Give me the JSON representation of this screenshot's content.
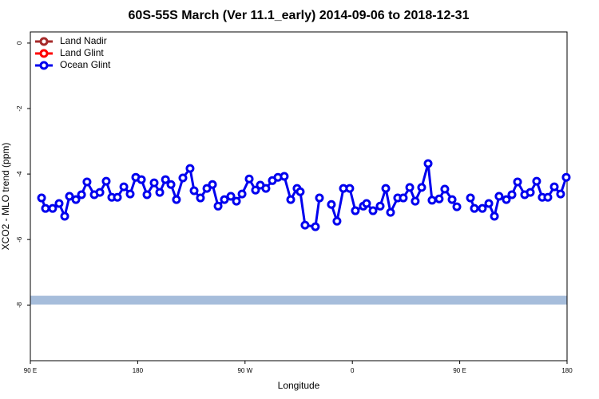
{
  "chart_data": {
    "type": "line",
    "title": "60S-55S March (Ver 11.1_early)   2014-09-06 to 2018-12-31",
    "x_label": "Longitude",
    "y_label": "XCO2 - MLO trend (ppm)",
    "xlim": [
      90,
      540
    ],
    "ylim": [
      -9.7,
      0.34
    ],
    "xticks": [
      {
        "value": 90,
        "label": "90 E"
      },
      {
        "value": 180,
        "label": "180"
      },
      {
        "value": 270,
        "label": "90 W"
      },
      {
        "value": 360,
        "label": "0"
      },
      {
        "value": 450,
        "label": "90 E"
      },
      {
        "value": 540,
        "label": "180"
      }
    ],
    "yticks": [
      0,
      -2,
      -4,
      -6,
      -8
    ],
    "hline": {
      "value": -7.85,
      "color": "#a6bddb"
    },
    "legend": "top-left",
    "series": [
      {
        "name": "Land Nadir",
        "color": "#a52a2a",
        "x": [],
        "values": []
      },
      {
        "name": "Land Glint",
        "color": "#ff0000",
        "x": [],
        "values": []
      },
      {
        "name": "Ocean Glint",
        "color": "#0000ee",
        "x": [
          99.4,
          102.7,
          108.7,
          114.1,
          118.8,
          122.8,
          128.2,
          132.9,
          137.5,
          143.6,
          148.3,
          153.6,
          158.3,
          163.0,
          168.4,
          173.7,
          178.4,
          183.1,
          187.8,
          193.8,
          198.5,
          203.3,
          207.9,
          212.5,
          217.9,
          223.9,
          227.3,
          232.6,
          238.0,
          242.7,
          247.4,
          252.7,
          258.1,
          262.8,
          267.5,
          273.5,
          278.8,
          282.8,
          287.5,
          292.9,
          297.6,
          302.9,
          308.3,
          313.6,
          316.3,
          320.3,
          329.0,
          332.4,
          337.4,
          342.4,
          347.1,
          352.5,
          357.8,
          362.5,
          369.2,
          371.9,
          377.3,
          383.3,
          388.0,
          392.0,
          398.0,
          402.7,
          408.1,
          412.7,
          418.1,
          423.5,
          426.8,
          432.8,
          437.5,
          443.6,
          447.6,
          453.3,
          459.0,
          462.3,
          469.0,
          474.4,
          479.1,
          483.0,
          489.1,
          493.8,
          498.5,
          504.5,
          509.2,
          514.5,
          519.2,
          523.9,
          529.3,
          534.6,
          539.3
        ],
        "values": [
          -4.73,
          -5.05,
          -5.05,
          -4.9,
          -5.29,
          -4.68,
          -4.78,
          -4.63,
          -4.24,
          -4.63,
          -4.56,
          -4.22,
          -4.71,
          -4.71,
          -4.39,
          -4.61,
          -4.1,
          -4.17,
          -4.63,
          -4.27,
          -4.56,
          -4.17,
          -4.32,
          -4.78,
          -4.12,
          -3.83,
          -4.51,
          -4.73,
          -4.44,
          -4.32,
          -4.98,
          -4.78,
          -4.68,
          -4.83,
          -4.61,
          -4.15,
          -4.49,
          -4.34,
          -4.44,
          -4.2,
          -4.1,
          -4.07,
          -4.78,
          -4.44,
          -4.54,
          -5.56,
          -5.61,
          -4.73,
          null,
          -4.93,
          -5.44,
          -4.44,
          -4.44,
          -5.12,
          -4.98,
          -4.9,
          -5.12,
          -4.98,
          -4.44,
          -5.17,
          -4.73,
          -4.73,
          -4.41,
          -4.83,
          -4.41,
          -3.68,
          -4.8,
          -4.76,
          -4.46,
          -4.78,
          -5.0,
          null,
          -4.73,
          -5.05,
          -5.05,
          -4.9,
          -5.29,
          -4.68,
          -4.78,
          -4.63,
          -4.24,
          -4.63,
          -4.56,
          -4.22,
          -4.71,
          -4.71,
          -4.39,
          -4.61,
          -4.1
        ]
      }
    ]
  }
}
